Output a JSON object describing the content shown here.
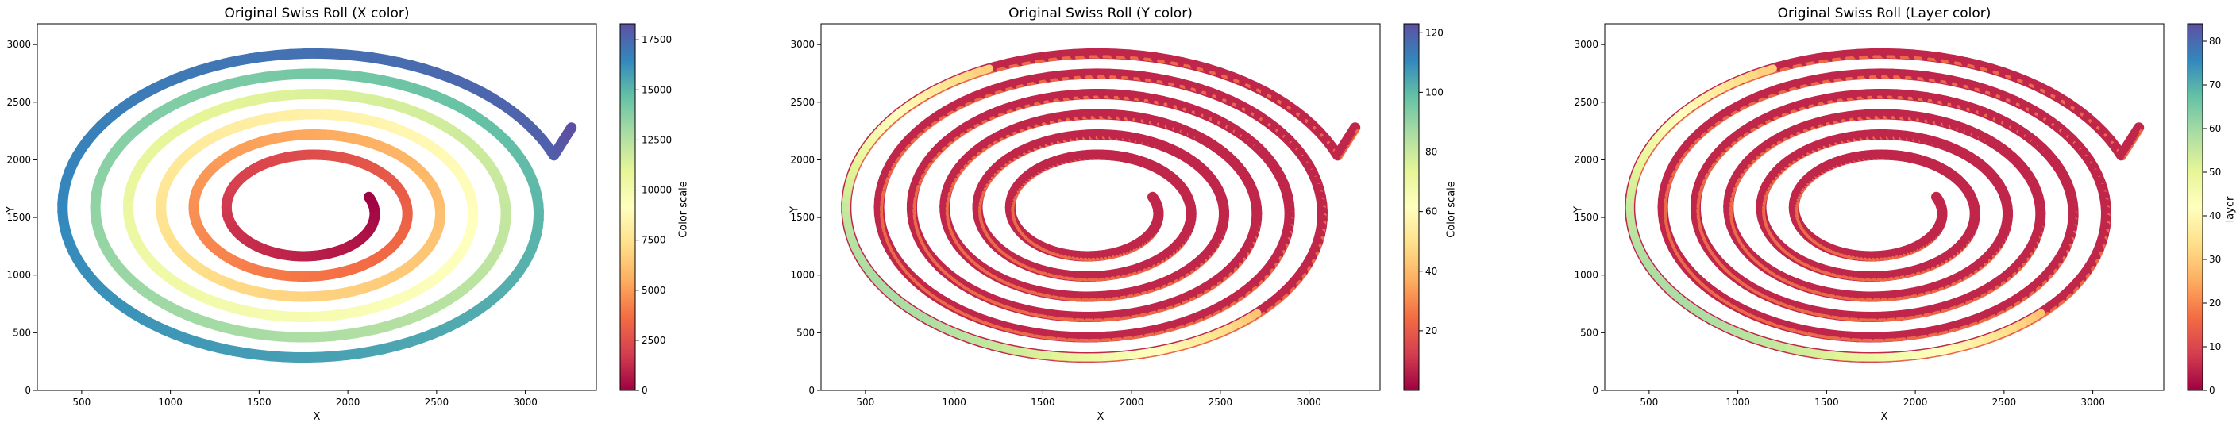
{
  "figure": {
    "panels": [
      {
        "title": "Original Swiss Roll (X color)",
        "xlabel": "X",
        "ylabel": "Y",
        "colorbar_label": "Color scale",
        "colorbar_range": [
          0,
          18300
        ],
        "colorbar_ticks": [
          0,
          2500,
          5000,
          7500,
          10000,
          12500,
          15000,
          17500
        ],
        "colormap": "Spectral",
        "coloring": "by_arc_length"
      },
      {
        "title": "Original Swiss Roll (Y color)",
        "xlabel": "X",
        "ylabel": "Y",
        "colorbar_label": "Color scale",
        "colorbar_range": [
          0,
          123
        ],
        "colorbar_ticks": [
          20,
          40,
          60,
          80,
          100,
          120
        ],
        "colormap": "Spectral",
        "coloring": "by_width"
      },
      {
        "title": "Original Swiss Roll (Layer color)",
        "xlabel": "X",
        "ylabel": "Y",
        "colorbar_label": "layer",
        "colorbar_range": [
          0,
          84
        ],
        "colorbar_ticks": [
          0,
          10,
          20,
          30,
          40,
          50,
          60,
          70,
          80
        ],
        "colormap": "Spectral",
        "coloring": "by_width"
      }
    ]
  },
  "chart_data": [
    {
      "type": "scatter",
      "title": "Original Swiss Roll (X color)",
      "xlabel": "X",
      "ylabel": "Y",
      "xlim": [
        250,
        3400
      ],
      "ylim": [
        0,
        3180
      ],
      "xticks": [
        500,
        1000,
        1500,
        2000,
        2500,
        3000
      ],
      "yticks": [
        0,
        500,
        1000,
        1500,
        2000,
        2500,
        3000
      ],
      "spiral": {
        "center": [
          1780,
          1560
        ],
        "r_start": 360,
        "turns": 6,
        "r_step": 185,
        "x_scale": 1.0,
        "y_scale": 0.95,
        "tail_end": [
          3260,
          2280
        ]
      },
      "colorbar": {
        "label": "Color scale",
        "min": 0,
        "max": 18300,
        "ticks": [
          0,
          2500,
          5000,
          7500,
          10000,
          12500,
          15000,
          17500
        ]
      }
    },
    {
      "type": "scatter",
      "title": "Original Swiss Roll (Y color)",
      "xlabel": "X",
      "ylabel": "Y",
      "xlim": [
        250,
        3400
      ],
      "ylim": [
        0,
        3180
      ],
      "xticks": [
        500,
        1000,
        1500,
        2000,
        2500,
        3000
      ],
      "yticks": [
        0,
        500,
        1000,
        1500,
        2000,
        2500,
        3000
      ],
      "spiral": {
        "center": [
          1780,
          1560
        ],
        "r_start": 360,
        "turns": 6,
        "r_step": 185,
        "x_scale": 1.0,
        "y_scale": 0.95,
        "tail_end": [
          3260,
          2280
        ]
      },
      "colorbar": {
        "label": "Color scale",
        "min": 0,
        "max": 123,
        "ticks": [
          20,
          40,
          60,
          80,
          100,
          120
        ]
      }
    },
    {
      "type": "scatter",
      "title": "Original Swiss Roll (Layer color)",
      "xlabel": "X",
      "ylabel": "Y",
      "xlim": [
        250,
        3400
      ],
      "ylim": [
        0,
        3180
      ],
      "xticks": [
        500,
        1000,
        1500,
        2000,
        2500,
        3000
      ],
      "yticks": [
        0,
        500,
        1000,
        1500,
        2000,
        2500,
        3000
      ],
      "spiral": {
        "center": [
          1780,
          1560
        ],
        "r_start": 360,
        "turns": 6,
        "r_step": 185,
        "x_scale": 1.0,
        "y_scale": 0.95,
        "tail_end": [
          3260,
          2280
        ]
      },
      "colorbar": {
        "label": "layer",
        "min": 0,
        "max": 84,
        "ticks": [
          0,
          10,
          20,
          30,
          40,
          50,
          60,
          70,
          80
        ]
      }
    }
  ]
}
